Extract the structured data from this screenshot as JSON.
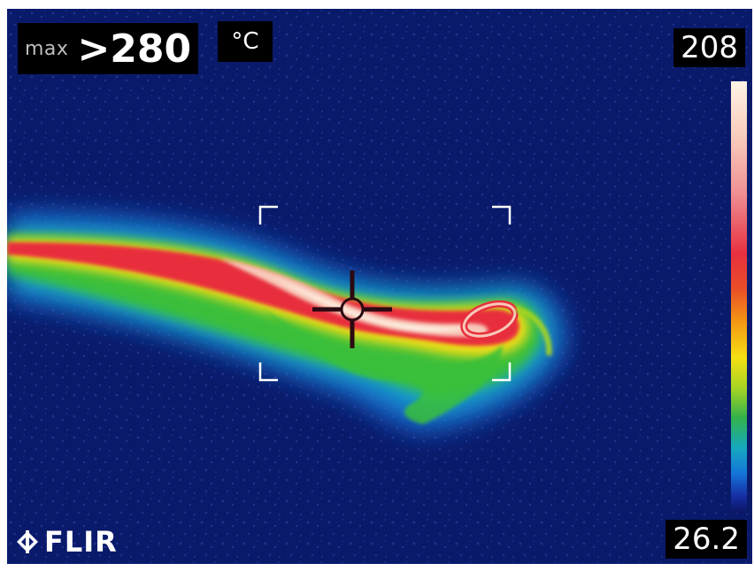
{
  "overlay": {
    "max_label": "max",
    "max_value": ">280",
    "unit": "°C"
  },
  "scale": {
    "top_value": "208",
    "bottom_value": "26.2",
    "palette": [
      "#fff4e6",
      "#f8c8b8",
      "#ef8f93",
      "#e8303f",
      "#ea4d28",
      "#f39a13",
      "#f5df12",
      "#a8d523",
      "#33b24a",
      "#16a8c0",
      "#1474d8",
      "#162fa4",
      "#0b1564"
    ]
  },
  "brand": {
    "logo_text": "FLIR"
  },
  "colors": {
    "background": "#0a1a6b",
    "hot": "#e8303f",
    "warm": "#f5df12",
    "mild": "#33b24a",
    "cool": "#16a8c0"
  }
}
